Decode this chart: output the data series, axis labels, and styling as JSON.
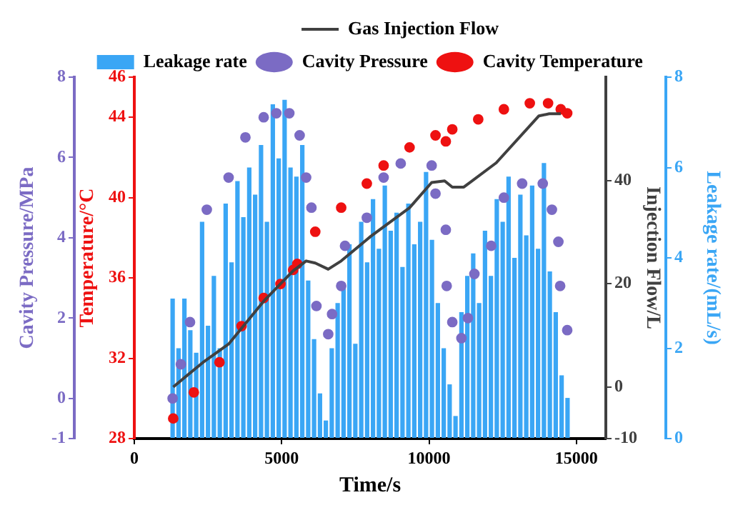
{
  "chart_data": [
    {
      "type": "scatter",
      "xlabel": "Time/s",
      "ylabel": "Cavity Pressure/MPa",
      "y2label": "Temperature/°C",
      "y3label": "Leakage rate/(mL/s)",
      "xlim": [
        0,
        16000
      ],
      "xticks": [
        0,
        5000,
        10000,
        15000
      ],
      "ylim": [
        -1,
        8
      ],
      "yticks": [
        -1,
        0,
        2,
        4,
        6,
        8
      ],
      "y2lim": [
        28,
        46
      ],
      "y2ticks": [
        28,
        32,
        36,
        40,
        44,
        46
      ],
      "y3lim": [
        0,
        8
      ],
      "y3ticks": [
        0,
        2,
        4,
        6,
        8
      ],
      "legend": "top",
      "grid": false,
      "marker": "circle",
      "series": [
        {
          "name": "Leakage rate",
          "type": "bar",
          "axis": "y3",
          "color": "#3aa6f5",
          "x": [
            1300,
            1500,
            1700,
            1900,
            2100,
            2300,
            2500,
            2700,
            2900,
            3100,
            3300,
            3500,
            3700,
            3900,
            4100,
            4300,
            4500,
            4700,
            4900,
            5100,
            5300,
            5500,
            5700,
            5900,
            6100,
            6300,
            6500,
            6700,
            6900,
            7100,
            7300,
            7500,
            7700,
            7900,
            8100,
            8300,
            8500,
            8700,
            8900,
            9100,
            9300,
            9500,
            9700,
            9900,
            10100,
            10300,
            10500,
            10700,
            10900,
            11100,
            11300,
            11500,
            11700,
            11900,
            12100,
            12300,
            12500,
            12700,
            12900,
            13100,
            13300,
            13500,
            13700,
            13900,
            14100,
            14300,
            14500,
            14700
          ],
          "values": [
            3.1,
            2.0,
            3.1,
            2.4,
            1.9,
            4.8,
            2.5,
            3.6,
            2.0,
            5.2,
            3.9,
            5.7,
            4.9,
            6.0,
            5.4,
            6.5,
            4.8,
            7.4,
            6.2,
            7.5,
            6.0,
            5.8,
            6.5,
            3.5,
            2.2,
            1.0,
            0.4,
            2.0,
            3.0,
            3.4,
            4.3,
            2.1,
            4.8,
            3.9,
            5.3,
            4.2,
            5.6,
            4.6,
            5.0,
            3.8,
            5.2,
            4.3,
            4.8,
            5.9,
            4.4,
            3.0,
            2.0,
            1.2,
            0.5,
            2.8,
            3.6,
            4.1,
            3.0,
            4.6,
            3.6,
            5.3,
            4.8,
            5.8,
            4.0,
            5.4,
            4.5,
            5.6,
            4.2,
            6.1,
            3.7,
            2.8,
            1.4,
            0.9
          ]
        },
        {
          "name": "Cavity Pressure",
          "color": "#7b6bc4",
          "x": [
            1300,
            1580,
            1890,
            2460,
            3200,
            3770,
            4390,
            4820,
            5260,
            5610,
            5830,
            6010,
            6180,
            6580,
            6710,
            7020,
            7150,
            7890,
            8460,
            9040,
            10090,
            10220,
            10570,
            10600,
            10790,
            11100,
            11320,
            11540,
            12110,
            12540,
            13160,
            13860,
            14170,
            14390,
            14450,
            14690
          ],
          "values": [
            0,
            0.85,
            1.9,
            4.7,
            5.5,
            6.5,
            7.0,
            7.1,
            7.1,
            6.55,
            5.5,
            4.75,
            2.3,
            1.6,
            2.1,
            2.8,
            3.8,
            4.5,
            5.5,
            5.85,
            5.8,
            5.1,
            4.2,
            2.8,
            1.9,
            1.5,
            2.0,
            3.1,
            3.8,
            5.0,
            5.35,
            5.35,
            4.7,
            3.9,
            2.8,
            1.7
          ]
        },
        {
          "name": "Cavity Temperature",
          "axis": "y2",
          "color": "#ee1111",
          "x": [
            1320,
            2020,
            2890,
            3640,
            4390,
            4960,
            5390,
            5530,
            6140,
            7020,
            7890,
            8460,
            9340,
            10220,
            10570,
            10790,
            11670,
            12540,
            13420,
            14040,
            14470,
            14690
          ],
          "values": [
            29.0,
            30.3,
            31.8,
            33.6,
            35.0,
            35.7,
            36.4,
            36.7,
            38.3,
            39.5,
            40.7,
            41.6,
            42.5,
            43.1,
            42.8,
            43.4,
            43.9,
            44.4,
            44.7,
            44.7,
            44.4,
            44.2
          ]
        }
      ]
    },
    {
      "type": "line",
      "ylabel": "Injection Flow/L",
      "xlim": [
        0,
        16000
      ],
      "tick_labels": "y",
      "ylim": [
        -10,
        60
      ],
      "yticks": [
        -10,
        0,
        20,
        40
      ],
      "legend": "top",
      "grid": false,
      "marker": "none",
      "line_style": "solid",
      "series": [
        {
          "name": "Gas Injection Flow",
          "color": "#404040",
          "x": [
            1320,
            2320,
            3200,
            4390,
            5390,
            5830,
            6140,
            6580,
            7020,
            8030,
            9340,
            10090,
            10530,
            10790,
            11180,
            12280,
            13730,
            14080,
            14470
          ],
          "values": [
            0,
            4.7,
            8.3,
            16.6,
            22.5,
            24.4,
            24,
            22.8,
            24.4,
            29.2,
            34.7,
            39.6,
            39.9,
            38.7,
            38.7,
            43.4,
            52.5,
            52.9,
            52.9
          ]
        }
      ]
    }
  ]
}
